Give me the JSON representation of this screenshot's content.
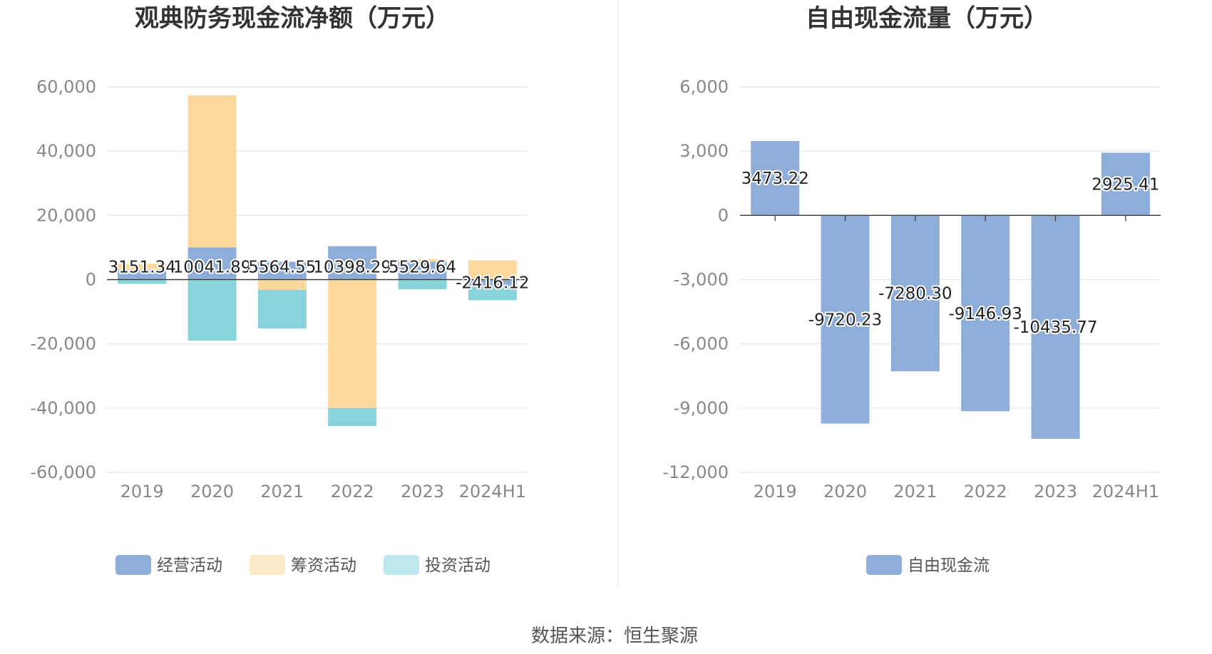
{
  "colors": {
    "operating": "#8eadd9",
    "financing": "#fdd89c",
    "investing": "#86d4d9",
    "free_cash_flow": "#8eadd9"
  },
  "source_text": "数据来源：恒生聚源",
  "chart_data": [
    {
      "type": "bar",
      "stacked": true,
      "title": "观典防务现金流净额（万元）",
      "categories": [
        "2019",
        "2020",
        "2021",
        "2022",
        "2023",
        "2024H1"
      ],
      "ylim": [
        -60000,
        60000
      ],
      "yticks": [
        60000,
        40000,
        20000,
        0,
        -20000,
        -40000,
        -60000
      ],
      "ytick_labels": [
        "60,000",
        "40,000",
        "20,000",
        "0",
        "-20,000",
        "-40,000",
        "-60,000"
      ],
      "grid": true,
      "legend_position": "bottom",
      "series": [
        {
          "name": "经营活动",
          "color_key": "operating",
          "values": [
            3151.34,
            10041.89,
            5564.55,
            10398.29,
            5529.64,
            -2416.12
          ]
        },
        {
          "name": "筹资活动",
          "color_key": "financing",
          "values": [
            1800,
            47300,
            -3200,
            -40000,
            800,
            6000
          ]
        },
        {
          "name": "投资活动",
          "color_key": "investing",
          "values": [
            -1300,
            -19000,
            -12000,
            -5600,
            -3000,
            -4000
          ]
        }
      ],
      "data_labels": [
        "3151.34",
        "10041.89",
        "5564.55",
        "10398.29",
        "5529.64",
        "-2416.12"
      ]
    },
    {
      "type": "bar",
      "title": "自由现金流量（万元）",
      "categories": [
        "2019",
        "2020",
        "2021",
        "2022",
        "2023",
        "2024H1"
      ],
      "ylim": [
        -12000,
        6000
      ],
      "yticks": [
        6000,
        3000,
        0,
        -3000,
        -6000,
        -9000,
        -12000
      ],
      "ytick_labels": [
        "6,000",
        "3,000",
        "0",
        "-3,000",
        "-6,000",
        "-9,000",
        "-12,000"
      ],
      "grid": true,
      "legend_position": "bottom",
      "series": [
        {
          "name": "自由现金流",
          "color_key": "free_cash_flow",
          "values": [
            3473.22,
            -9720.23,
            -7280.3,
            -9146.93,
            -10435.77,
            2925.41
          ]
        }
      ],
      "data_labels": [
        "3473.22",
        "-9720.23",
        "-7280.30",
        "-9146.93",
        "-10435.77",
        "2925.41"
      ]
    }
  ]
}
